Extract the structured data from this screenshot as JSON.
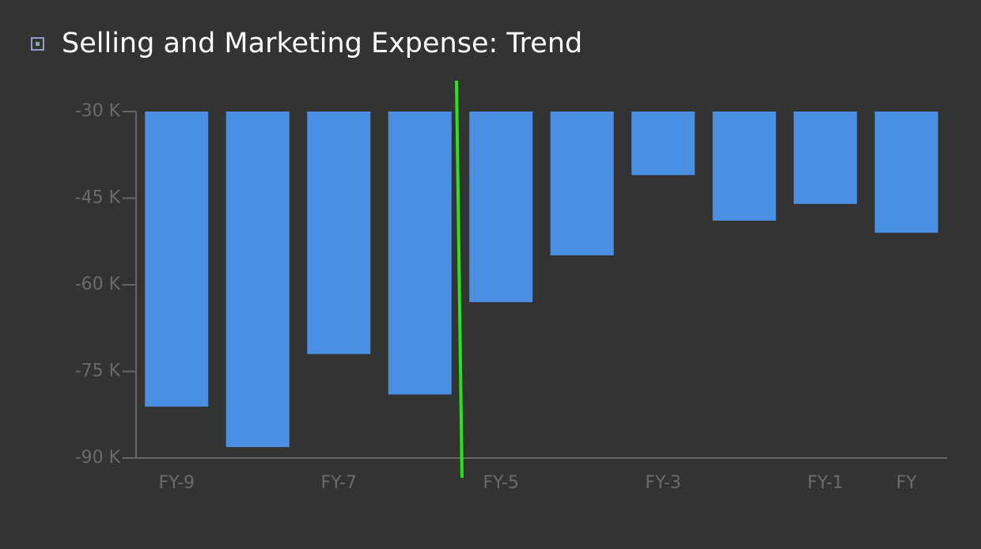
{
  "chart_data": {
    "type": "bar",
    "title": "Selling and Marketing Expense: Trend",
    "categories": [
      "FY-9",
      null,
      "FY-7",
      null,
      "FY-5",
      null,
      "FY-3",
      null,
      "FY-1",
      "FY"
    ],
    "values": [
      -81100,
      -88100,
      -72000,
      -79000,
      -63000,
      -54900,
      -41000,
      -48900,
      -46000,
      -51000
    ],
    "color": "#4a8fe2",
    "ylim": [
      -90000,
      -30000
    ],
    "yticks": [
      {
        "value": -30000,
        "label": "-30 K"
      },
      {
        "value": -45000,
        "label": "-45 K"
      },
      {
        "value": -60000,
        "label": "-60 K"
      },
      {
        "value": -75000,
        "label": "-75 K"
      },
      {
        "value": -90000,
        "label": "-90 K"
      }
    ],
    "grid": false
  }
}
